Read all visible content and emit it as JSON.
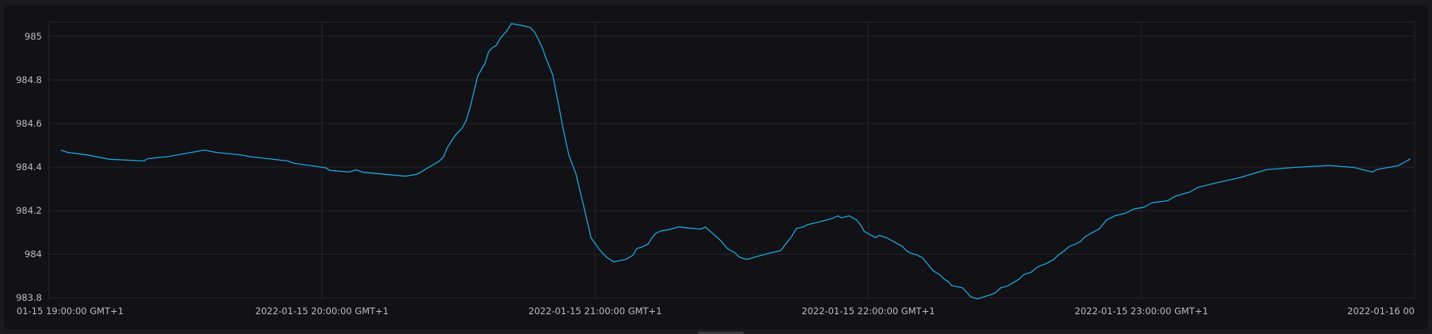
{
  "chart_data": {
    "type": "line",
    "title": "",
    "xlabel": "",
    "ylabel": "",
    "date": "2022-01-15",
    "xlim": [
      "19:00:00",
      "24:00:00"
    ],
    "ylim": [
      983.79,
      985.065
    ],
    "grid": true,
    "line_color": "#1fa6d8",
    "y_ticks": [
      {
        "value": 983.8,
        "label": "983.8"
      },
      {
        "value": 984,
        "label": "984"
      },
      {
        "value": 984.2,
        "label": "984.2"
      },
      {
        "value": 984.4,
        "label": "984.4"
      },
      {
        "value": 984.6,
        "label": "984.6"
      },
      {
        "value": 984.8,
        "label": "984.8"
      },
      {
        "value": 985,
        "label": "985"
      }
    ],
    "x_ticks": [
      {
        "value": "19:00:00",
        "label": "01-15 19:00:00 GMT+1"
      },
      {
        "value": "20:00:00",
        "label": "2022-01-15 20:00:00 GMT+1"
      },
      {
        "value": "21:00:00",
        "label": "2022-01-15 21:00:00 GMT+1"
      },
      {
        "value": "22:00:00",
        "label": "2022-01-15 22:00:00 GMT+1"
      },
      {
        "value": "23:00:00",
        "label": "2022-01-15 23:00:00 GMT+1"
      },
      {
        "value": "24:00:00",
        "label": "2022-01-16 00"
      }
    ],
    "series": [
      {
        "x": [
          "19:02:36",
          "19:04:12",
          "19:08:24",
          "19:13:18",
          "19:20:54",
          "19:21:36",
          "19:26:24",
          "19:34:12",
          "19:36:48",
          "19:41:42",
          "19:44:06",
          "19:52:30",
          "19:53:54",
          "19:58:30",
          "20:00:54",
          "20:01:42",
          "20:05:54",
          "20:07:30",
          "20:09:06",
          "20:18:18",
          "20:20:54",
          "20:25:48",
          "20:26:42",
          "20:27:30",
          "20:29:18",
          "20:30:42",
          "20:31:36",
          "20:32:30",
          "20:34:12",
          "20:35:48",
          "20:36:36",
          "20:37:24",
          "20:38:18",
          "20:39:06",
          "20:40:42",
          "20:41:36",
          "20:44:18",
          "20:45:48",
          "20:46:42",
          "20:47:30",
          "20:48:24",
          "20:49:18",
          "20:50:42",
          "20:51:54",
          "20:53:00",
          "20:54:12",
          "20:55:48",
          "20:57:24",
          "20:59:06",
          "21:00:54",
          "21:02:30",
          "21:04:06",
          "21:06:42",
          "21:08:18",
          "21:09:06",
          "21:10:24",
          "21:11:36",
          "21:12:30",
          "21:13:18",
          "21:14:30",
          "21:16:30",
          "21:18:18",
          "21:23:12",
          "21:24:12",
          "21:25:30",
          "21:27:30",
          "21:29:06",
          "21:30:42",
          "21:31:42",
          "21:33:18",
          "21:38:18",
          "21:40:42",
          "21:41:24",
          "21:42:36",
          "21:43:12",
          "21:44:12",
          "21:45:48",
          "21:46:42",
          "21:49:00",
          "21:52:12",
          "21:53:18",
          "21:54:06",
          "21:55:48",
          "21:57:24",
          "21:58:18",
          "21:59:06",
          "22:01:36",
          "22:02:24",
          "22:04:00",
          "22:07:30",
          "22:08:24",
          "22:09:18",
          "22:10:42",
          "22:11:54",
          "22:14:12",
          "22:15:48",
          "22:16:42",
          "22:17:36",
          "22:18:18",
          "22:20:42",
          "22:22:30",
          "22:24:00",
          "22:27:12",
          "22:28:06",
          "22:29:06",
          "22:30:42",
          "22:33:06",
          "22:34:12",
          "22:35:48",
          "22:36:48",
          "22:37:48",
          "22:39:06",
          "22:40:42",
          "22:41:42",
          "22:43:06",
          "22:44:12",
          "22:45:36",
          "22:46:36",
          "22:47:30",
          "22:49:00",
          "22:50:42",
          "22:52:24",
          "22:54:12",
          "22:56:30",
          "22:58:18",
          "23:00:36",
          "23:02:18",
          "23:05:48",
          "23:07:30",
          "23:10:42",
          "23:12:24",
          "23:15:54",
          "23:19:24",
          "23:21:42",
          "23:27:30",
          "23:33:18",
          "23:41:24",
          "23:46:42",
          "23:50:42",
          "23:51:36",
          "23:56:30",
          "23:59:06"
        ],
        "y": [
          984.478,
          984.467,
          984.456,
          984.436,
          984.428,
          984.438,
          984.449,
          984.478,
          984.467,
          984.457,
          984.448,
          984.428,
          984.417,
          984.404,
          984.396,
          984.385,
          984.377,
          984.387,
          984.376,
          984.358,
          984.367,
          984.428,
          984.446,
          984.488,
          984.547,
          984.576,
          984.61,
          984.67,
          984.818,
          984.876,
          984.929,
          984.947,
          984.959,
          984.989,
          985.028,
          985.058,
          985.048,
          985.04,
          985.019,
          984.988,
          984.947,
          984.895,
          984.822,
          984.695,
          984.573,
          984.458,
          984.367,
          984.228,
          984.076,
          984.022,
          983.986,
          983.965,
          983.976,
          983.995,
          984.025,
          984.034,
          984.046,
          984.076,
          984.096,
          984.107,
          984.114,
          984.125,
          984.115,
          984.125,
          984.101,
          984.064,
          984.025,
          984.007,
          983.986,
          983.976,
          984.005,
          984.016,
          984.034,
          984.067,
          984.082,
          984.118,
          984.126,
          984.136,
          984.147,
          984.165,
          984.176,
          984.167,
          984.176,
          984.158,
          984.135,
          984.105,
          984.076,
          984.086,
          984.076,
          984.036,
          984.016,
          984.005,
          983.996,
          983.984,
          983.925,
          983.904,
          983.885,
          983.874,
          983.856,
          983.846,
          983.805,
          983.795,
          983.816,
          983.826,
          983.846,
          983.855,
          983.885,
          983.907,
          983.917,
          983.936,
          983.947,
          983.957,
          983.975,
          983.996,
          984.016,
          984.036,
          984.047,
          984.058,
          984.078,
          984.097,
          984.116,
          984.158,
          984.177,
          984.188,
          984.207,
          984.216,
          984.236,
          984.246,
          984.267,
          984.286,
          984.307,
          984.325,
          984.341,
          984.352,
          984.388,
          984.398,
          984.407,
          984.398,
          984.377,
          984.388,
          984.407,
          984.438
        ]
      }
    ]
  }
}
